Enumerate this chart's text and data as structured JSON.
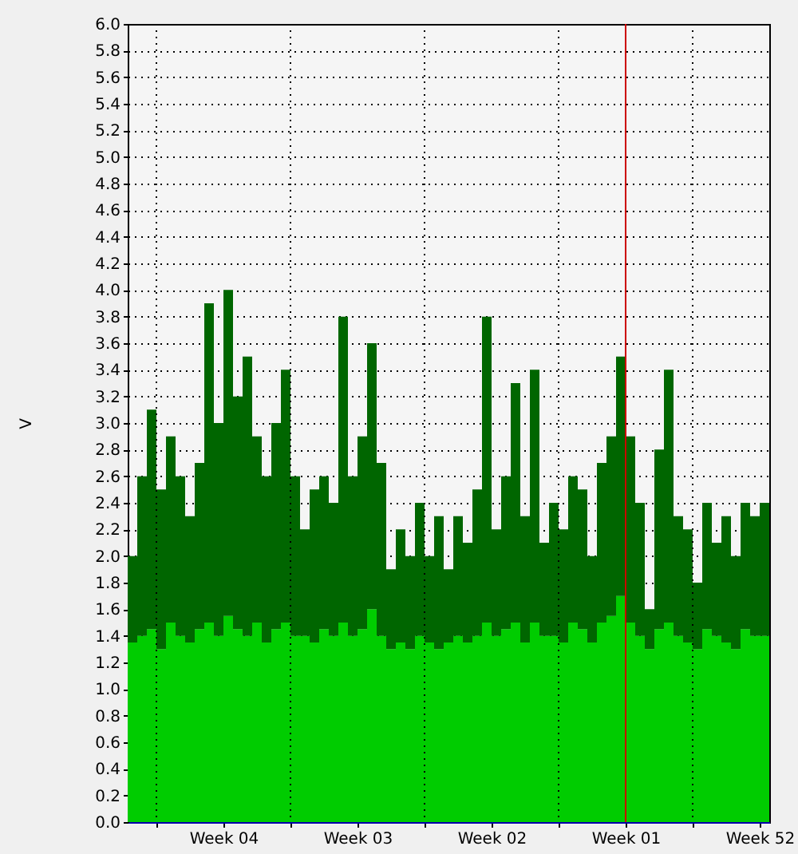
{
  "chart_data": {
    "type": "area",
    "ylabel": "V",
    "stacked": true,
    "grid": true,
    "categories": [
      null,
      null,
      null,
      null,
      null,
      null,
      null,
      null,
      null,
      null,
      "Week 04",
      null,
      null,
      null,
      null,
      null,
      null,
      null,
      null,
      null,
      null,
      null,
      null,
      null,
      "Week 03",
      null,
      null,
      null,
      null,
      null,
      null,
      null,
      null,
      null,
      null,
      null,
      null,
      null,
      "Week 02",
      null,
      null,
      null,
      null,
      null,
      null,
      null,
      null,
      null,
      null,
      null,
      null,
      null,
      "Week 01",
      null,
      null,
      null,
      null,
      null,
      null,
      null,
      null,
      null,
      null,
      null,
      null,
      null,
      "Week 52",
      null
    ],
    "series": [
      {
        "color": "#00cc00",
        "values": [
          1.35,
          1.4,
          1.45,
          1.3,
          1.5,
          1.4,
          1.35,
          1.45,
          1.5,
          1.4,
          1.55,
          1.45,
          1.4,
          1.5,
          1.35,
          1.45,
          1.5,
          1.4,
          1.4,
          1.35,
          1.45,
          1.4,
          1.5,
          1.4,
          1.45,
          1.6,
          1.4,
          1.3,
          1.35,
          1.3,
          1.4,
          1.35,
          1.3,
          1.35,
          1.4,
          1.35,
          1.4,
          1.5,
          1.4,
          1.45,
          1.5,
          1.35,
          1.5,
          1.4,
          1.4,
          1.35,
          1.5,
          1.45,
          1.35,
          1.5,
          1.55,
          1.7,
          1.5,
          1.4,
          1.3,
          1.45,
          1.5,
          1.4,
          1.35,
          1.3,
          1.45,
          1.4,
          1.35,
          1.3,
          1.45,
          1.4,
          1.4,
          1.35
        ]
      },
      {
        "color": "#006600",
        "values": [
          0.65,
          1.2,
          1.65,
          1.2,
          1.4,
          1.2,
          0.95,
          1.25,
          2.4,
          1.6,
          2.45,
          1.75,
          2.1,
          1.4,
          1.25,
          1.55,
          1.9,
          1.2,
          0.8,
          1.15,
          1.15,
          1.0,
          2.3,
          1.2,
          1.45,
          2.0,
          1.3,
          0.6,
          0.85,
          0.7,
          1.0,
          0.65,
          1.0,
          0.55,
          0.9,
          0.75,
          1.1,
          2.3,
          0.8,
          1.15,
          1.8,
          0.95,
          1.9,
          0.7,
          1.0,
          0.85,
          1.1,
          1.05,
          0.65,
          1.2,
          1.35,
          1.8,
          1.4,
          1.0,
          0.3,
          1.35,
          1.9,
          0.9,
          0.85,
          0.5,
          0.95,
          0.7,
          0.95,
          0.7,
          0.95,
          0.9,
          1.0,
          0.75
        ]
      }
    ],
    "ylim": [
      0,
      6
    ],
    "yticks": [
      {
        "value": 0,
        "label": "0.0"
      },
      {
        "value": 0.2,
        "label": "0.2"
      },
      {
        "value": 0.4,
        "label": "0.4"
      },
      {
        "value": 0.6,
        "label": "0.6"
      },
      {
        "value": 0.8,
        "label": "0.8"
      },
      {
        "value": 1,
        "label": "1.0"
      },
      {
        "value": 1.2,
        "label": "1.2"
      },
      {
        "value": 1.4,
        "label": "1.4"
      },
      {
        "value": 1.6,
        "label": "1.6"
      },
      {
        "value": 1.8,
        "label": "1.8"
      },
      {
        "value": 2,
        "label": "2.0"
      },
      {
        "value": 2.2,
        "label": "2.2"
      },
      {
        "value": 2.4,
        "label": "2.4"
      },
      {
        "value": 2.6,
        "label": "2.6"
      },
      {
        "value": 2.8,
        "label": "2.8"
      },
      {
        "value": 3,
        "label": "3.0"
      },
      {
        "value": 3.2,
        "label": "3.2"
      },
      {
        "value": 3.4,
        "label": "3.4"
      },
      {
        "value": 3.6,
        "label": "3.6"
      },
      {
        "value": 3.8,
        "label": "3.8"
      },
      {
        "value": 4,
        "label": "4.0"
      },
      {
        "value": 4.2,
        "label": "4.2"
      },
      {
        "value": 4.4,
        "label": "4.4"
      },
      {
        "value": 4.6,
        "label": "4.6"
      },
      {
        "value": 4.8,
        "label": "4.8"
      },
      {
        "value": 5,
        "label": "5.0"
      },
      {
        "value": 5.2,
        "label": "5.2"
      },
      {
        "value": 5.4,
        "label": "5.4"
      },
      {
        "value": 5.6,
        "label": "5.6"
      },
      {
        "value": 5.8,
        "label": "5.8"
      },
      {
        "value": 6,
        "label": "6.0"
      }
    ],
    "ref_lines": [
      {
        "axis": "x",
        "value": "Week 01",
        "color": "#cc0000"
      }
    ]
  }
}
